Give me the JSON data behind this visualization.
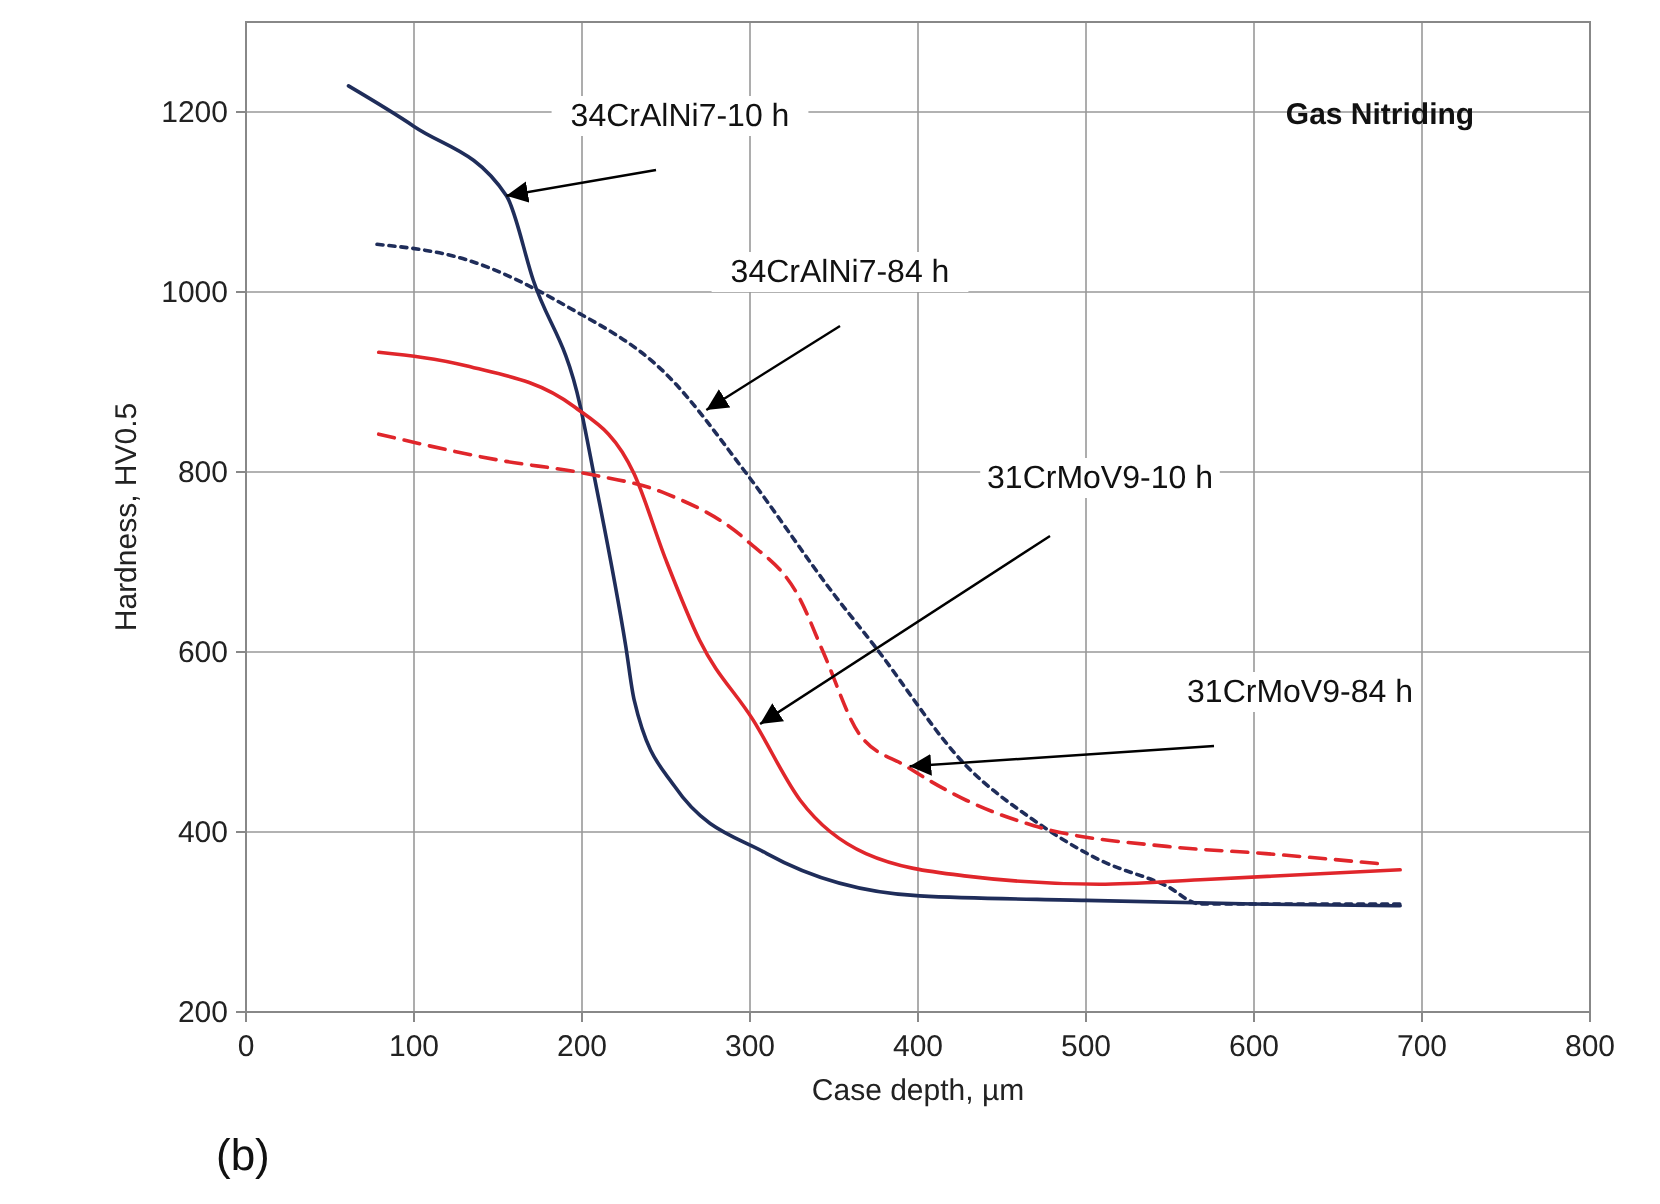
{
  "chart_data": {
    "type": "line",
    "xlabel": "Case depth, µm",
    "ylabel": "Hardness, HV0.5",
    "xlim": [
      0,
      800
    ],
    "xticks": [
      0,
      100,
      200,
      300,
      400,
      500,
      600,
      700,
      800
    ],
    "ylim": [
      200,
      1300
    ],
    "yticks": [
      200,
      400,
      600,
      800,
      1000,
      1200
    ],
    "grid": true,
    "series": [
      {
        "color": "#1f2d5a",
        "line_style": "solid",
        "x": [
          61,
          100,
          155,
          171,
          199,
          207,
          226,
          231,
          255,
          310,
          401,
          500,
          600,
          687
        ],
        "values": [
          1229,
          1184,
          1107,
          1013,
          873,
          798,
          607,
          547,
          451,
          376,
          329,
          324,
          320,
          318
        ]
      },
      {
        "color": "#1f2d5a",
        "line_style": "dotted",
        "x": [
          78,
          131,
          191,
          250,
          298,
          350,
          374,
          429,
          469,
          508,
          548,
          568,
          687
        ],
        "values": [
          1053,
          1036,
          984,
          909,
          798,
          664,
          607,
          473,
          413,
          369,
          340,
          320,
          320
        ]
      },
      {
        "color": "#e0262b",
        "line_style": "solid",
        "x": [
          79,
          131,
          195,
          231,
          250,
          270,
          302,
          330,
          369,
          429,
          508,
          568,
          687
        ],
        "values": [
          933,
          918,
          873,
          798,
          702,
          613,
          524,
          435,
          376,
          351,
          342,
          347,
          358
        ]
      },
      {
        "color": "#e0262b",
        "line_style": "dashed",
        "x": [
          79,
          151,
          203,
          250,
          298,
          330,
          344,
          365,
          393,
          429,
          469,
          548,
          607,
          679
        ],
        "values": [
          842,
          813,
          798,
          776,
          724,
          658,
          598,
          509,
          473,
          435,
          407,
          384,
          376,
          364
        ]
      }
    ],
    "annotations": [
      {
        "text": "34CrAlNi7-10 h",
        "x": 155,
        "y": 1107
      },
      {
        "text": "34CrAlNi7-84 h",
        "x": 274,
        "y": 869
      },
      {
        "text": "31CrMoV9-10 h",
        "x": 306,
        "y": 520
      },
      {
        "text": "31CrMoV9-84 h",
        "x": 395,
        "y": 473
      },
      "Gas Nitriding",
      "(b)"
    ]
  }
}
